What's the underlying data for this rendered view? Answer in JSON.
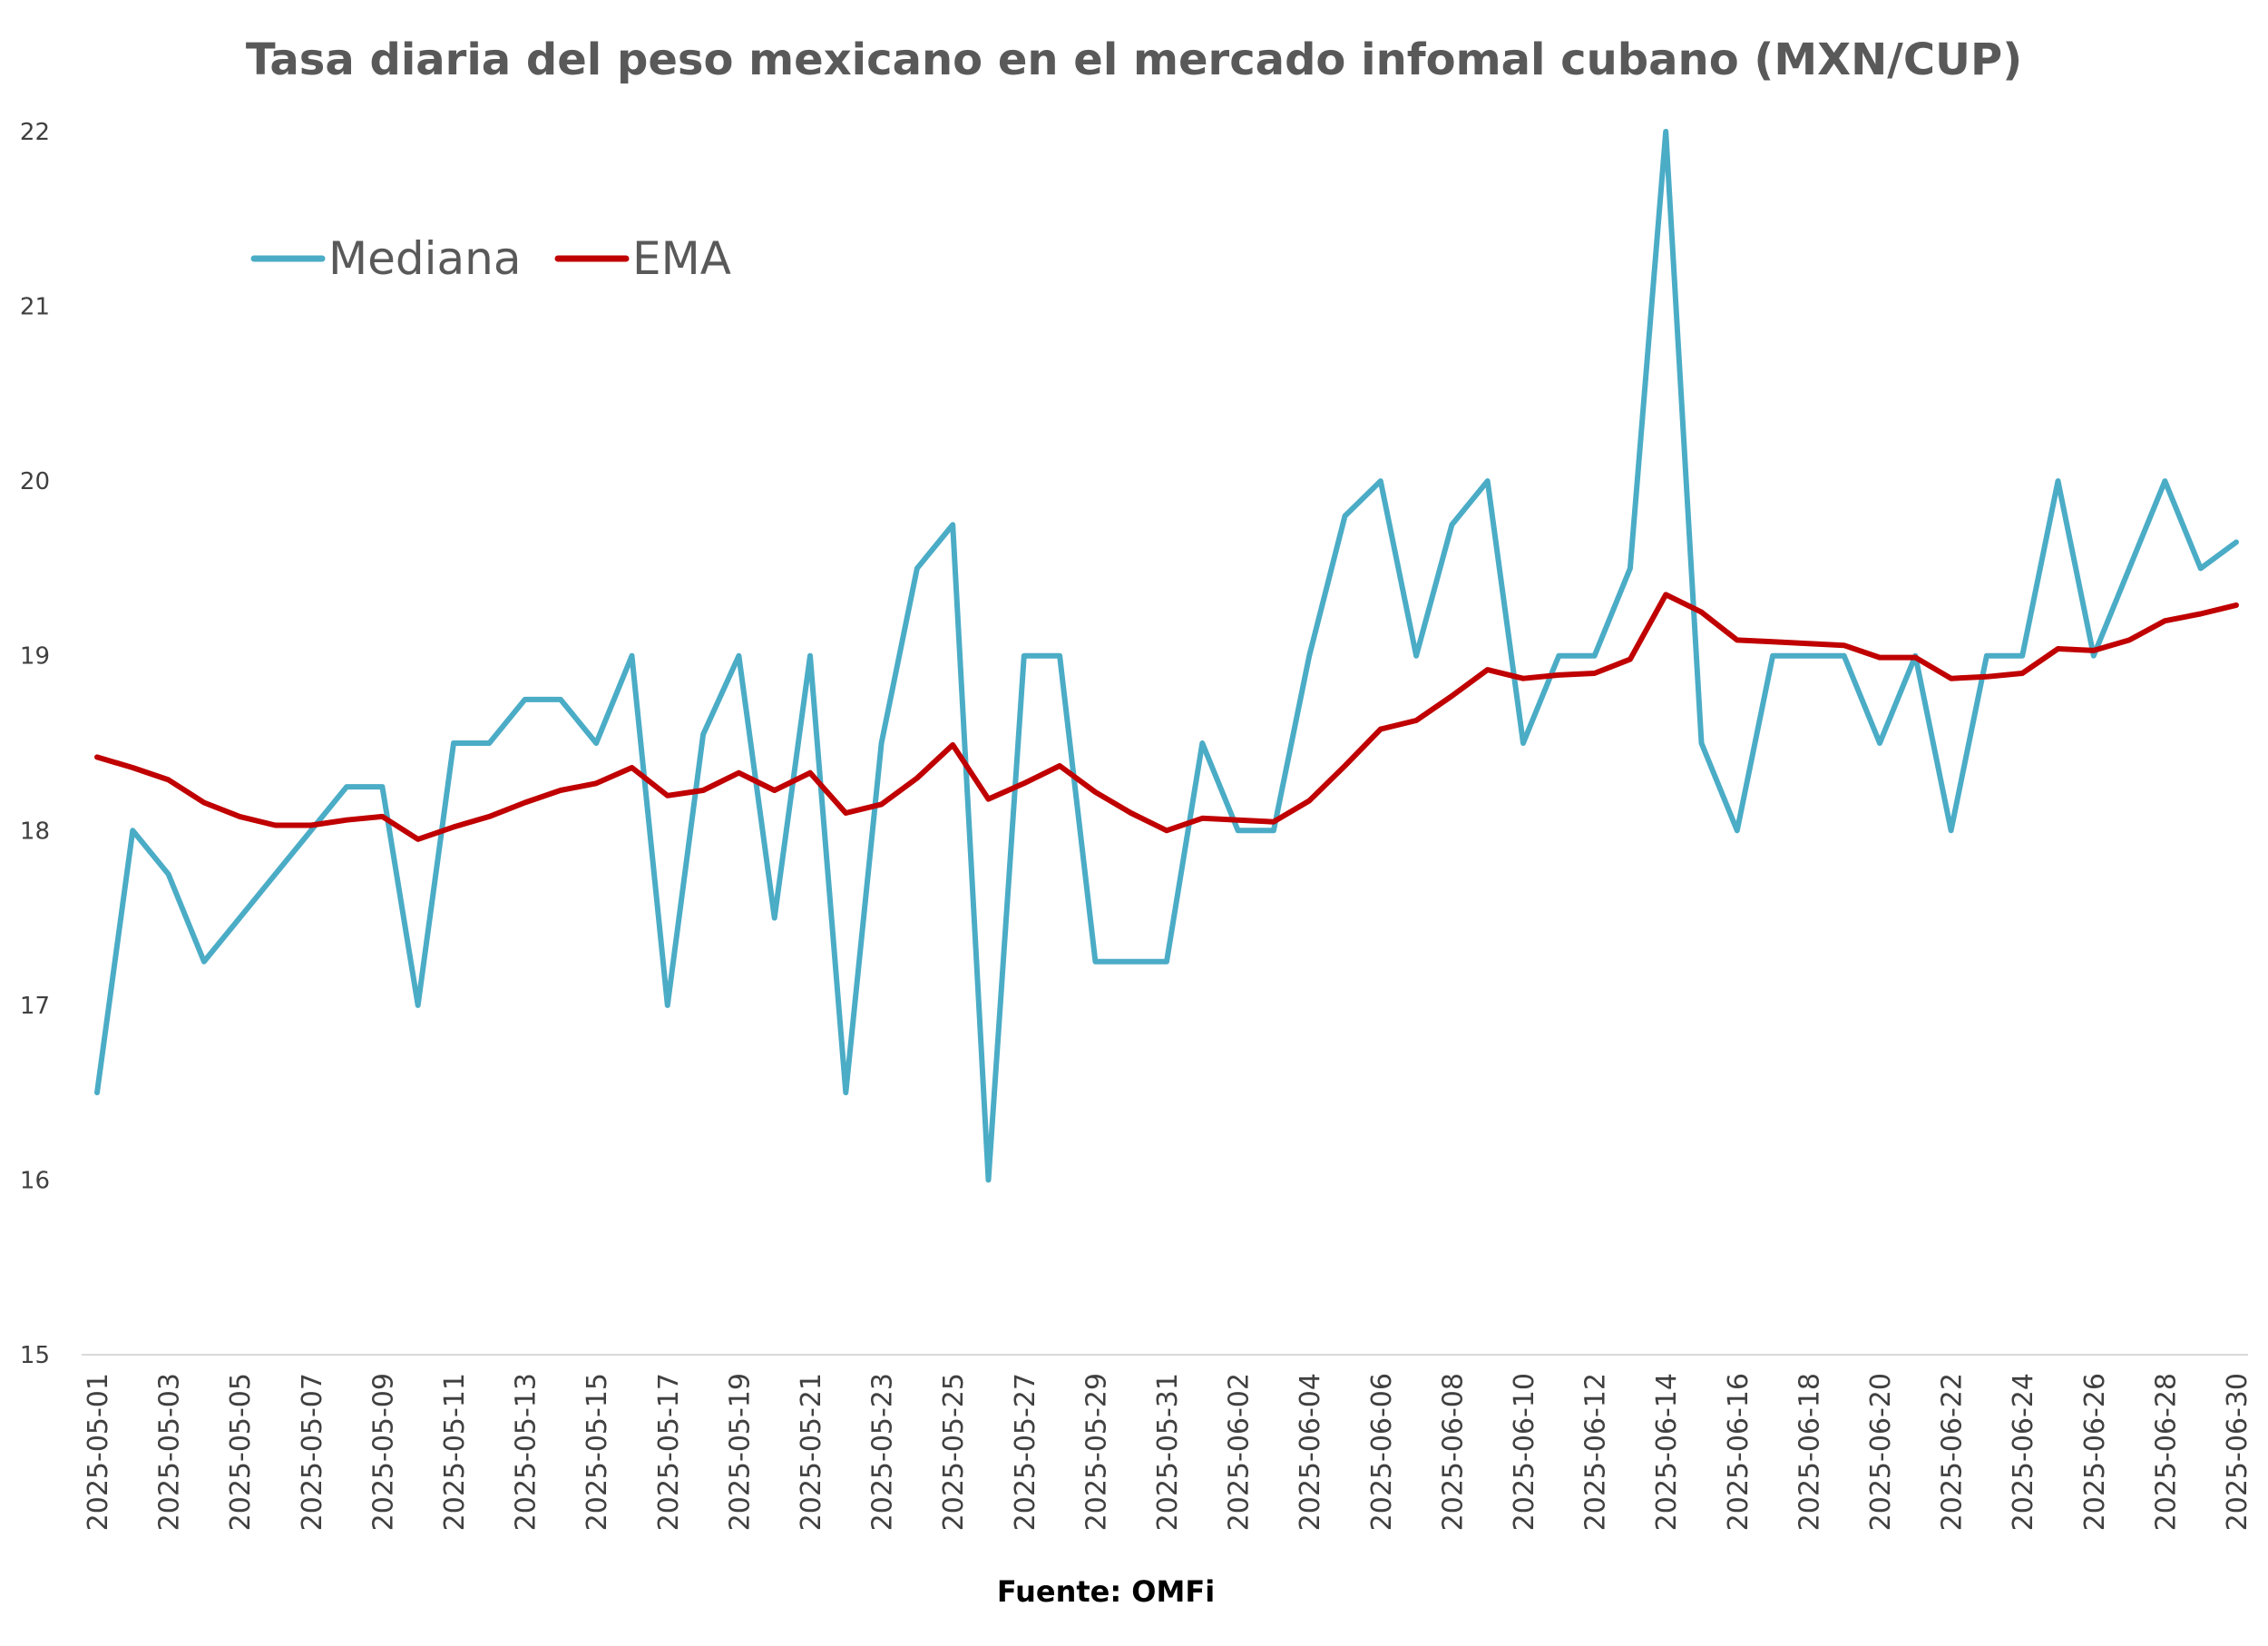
{
  "chart_data": {
    "type": "line",
    "title": "Tasa diaria del peso mexicano en el mercado infomal cubano (MXN/CUP)",
    "source": "Fuente: OMFi",
    "xlabel": "",
    "ylabel": "",
    "ylim": [
      15,
      22
    ],
    "yticks": [
      "15",
      "16",
      "17",
      "18",
      "19",
      "20",
      "21",
      "22"
    ],
    "grid": false,
    "legend_position": "top-left",
    "x": [
      "2025-05-01",
      "2025-05-02",
      "2025-05-03",
      "2025-05-04",
      "2025-05-05",
      "2025-05-06",
      "2025-05-07",
      "2025-05-08",
      "2025-05-09",
      "2025-05-10",
      "2025-05-11",
      "2025-05-12",
      "2025-05-13",
      "2025-05-14",
      "2025-05-15",
      "2025-05-16",
      "2025-05-17",
      "2025-05-18",
      "2025-05-19",
      "2025-05-20",
      "2025-05-21",
      "2025-05-22",
      "2025-05-23",
      "2025-05-24",
      "2025-05-25",
      "2025-05-26",
      "2025-05-27",
      "2025-05-28",
      "2025-05-29",
      "2025-05-30",
      "2025-05-31",
      "2025-06-01",
      "2025-06-02",
      "2025-06-03",
      "2025-06-04",
      "2025-06-05",
      "2025-06-06",
      "2025-06-07",
      "2025-06-08",
      "2025-06-09",
      "2025-06-10",
      "2025-06-11",
      "2025-06-12",
      "2025-06-13",
      "2025-06-14",
      "2025-06-15",
      "2025-06-16",
      "2025-06-17",
      "2025-06-18",
      "2025-06-19",
      "2025-06-20",
      "2025-06-21",
      "2025-06-22",
      "2025-06-23",
      "2025-06-24",
      "2025-06-25",
      "2025-06-26",
      "2025-06-27",
      "2025-06-28",
      "2025-06-29",
      "2025-06-30"
    ],
    "xtick_labels": [
      "2025-05-01",
      "2025-05-03",
      "2025-05-05",
      "2025-05-07",
      "2025-05-09",
      "2025-05-11",
      "2025-05-13",
      "2025-05-15",
      "2025-05-17",
      "2025-05-19",
      "2025-05-21",
      "2025-05-23",
      "2025-05-25",
      "2025-05-27",
      "2025-05-29",
      "2025-05-31",
      "2025-06-02",
      "2025-06-04",
      "2025-06-06",
      "2025-06-08",
      "2025-06-10",
      "2025-06-12",
      "2025-06-14",
      "2025-06-16",
      "2025-06-18",
      "2025-06-20",
      "2025-06-22",
      "2025-06-24",
      "2025-06-26",
      "2025-06-28",
      "2025-06-30"
    ],
    "series": [
      {
        "name": "Mediana",
        "color": "#4BACC6",
        "values": [
          16.5,
          18,
          17.75,
          17.25,
          17.5,
          17.75,
          18,
          18.25,
          18.25,
          17,
          18.5,
          18.5,
          18.75,
          18.75,
          18.5,
          19,
          17,
          18.55,
          19,
          17.5,
          19,
          16.5,
          18.5,
          19.5,
          19.75,
          16,
          19,
          19,
          17.25,
          17.25,
          17.25,
          18.5,
          18,
          18,
          19,
          19.8,
          20,
          19,
          19.75,
          20,
          18.5,
          19,
          19,
          19.5,
          22,
          18.5,
          18,
          19,
          19,
          19,
          18.5,
          19,
          18,
          19,
          19,
          20,
          19,
          19.5,
          20,
          19.5,
          19.65
        ]
      },
      {
        "name": "EMA",
        "color": "#C00000",
        "values": [
          18.42,
          18.36,
          18.29,
          18.16,
          18.08,
          18.03,
          18.03,
          18.06,
          18.08,
          17.95,
          18.02,
          18.08,
          18.16,
          18.23,
          18.27,
          18.36,
          18.2,
          18.23,
          18.33,
          18.23,
          18.33,
          18.1,
          18.15,
          18.3,
          18.49,
          18.18,
          18.27,
          18.37,
          18.22,
          18.1,
          18,
          18.07,
          18.06,
          18.05,
          18.17,
          18.37,
          18.58,
          18.63,
          18.77,
          18.92,
          18.87,
          18.89,
          18.9,
          18.98,
          19.35,
          19.25,
          19.09,
          19.08,
          19.07,
          19.06,
          18.99,
          18.99,
          18.87,
          18.88,
          18.9,
          19.04,
          19.03,
          19.09,
          19.2,
          19.24,
          19.29
        ]
      }
    ]
  }
}
